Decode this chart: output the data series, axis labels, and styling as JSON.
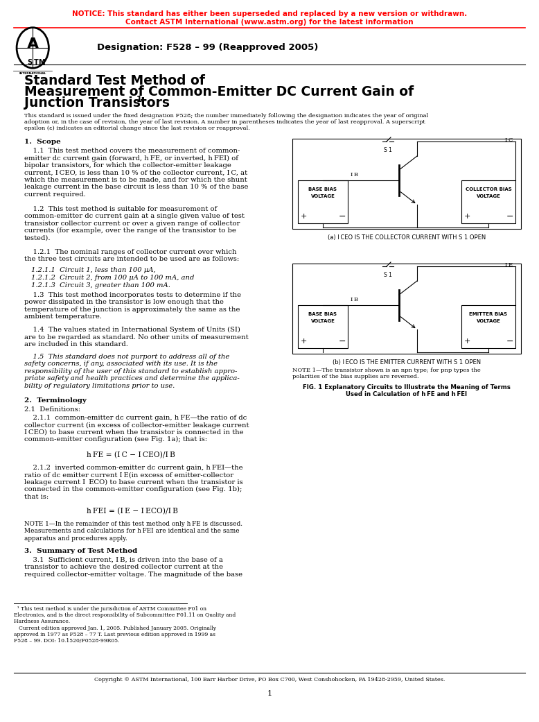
{
  "notice_line1": "NOTICE: This standard has either been superseded and replaced by a new version or withdrawn.",
  "notice_line2": "Contact ASTM International (www.astm.org) for the latest information",
  "notice_color": "#FF0000",
  "designation": "Designation: F528 – 99 (Reapproved 2005)",
  "title_line1": "Standard Test Method of",
  "title_line2": "Measurement of Common-Emitter DC Current Gain of",
  "title_line3": "Junction Transistors ",
  "title_superscript": "1",
  "intro_text": "This standard is issued under the fixed designation F528; the number immediately following the designation indicates the year of original\nadoption or, in the case of revision, the year of last revision. A number in parentheses indicates the year of last reapproval. A superscript\nepsilon (ε) indicates an editorial change since the last revision or reapproval.",
  "section1_head": "1.  Scope",
  "section2_head": "2.  Terminology",
  "section3_head": "3.  Summary of Test Method",
  "fig_note": "NOTE 1—The transistor shown is an npn type; for pnp types the\npolarities of the bias supplies are reversed.",
  "fig_caption": "FIG. 1 Explanatory Circuits to Illustrate the Meaning of Terms\nUsed in Calculation of h FE and h FEI",
  "fig_a_label": "(a) I CEO IS THE COLLECTOR CURRENT WITH S 1 OPEN",
  "fig_b_label": "(b) I ECO IS THE EMITTER CURRENT WITH S 1 OPEN",
  "copyright": "Copyright © ASTM International, 100 Barr Harbor Drive, PO Box C700, West Conshohocken, PA 19428-2959, United States.",
  "page_num": "1",
  "bg_color": "#FFFFFF",
  "text_color": "#000000"
}
